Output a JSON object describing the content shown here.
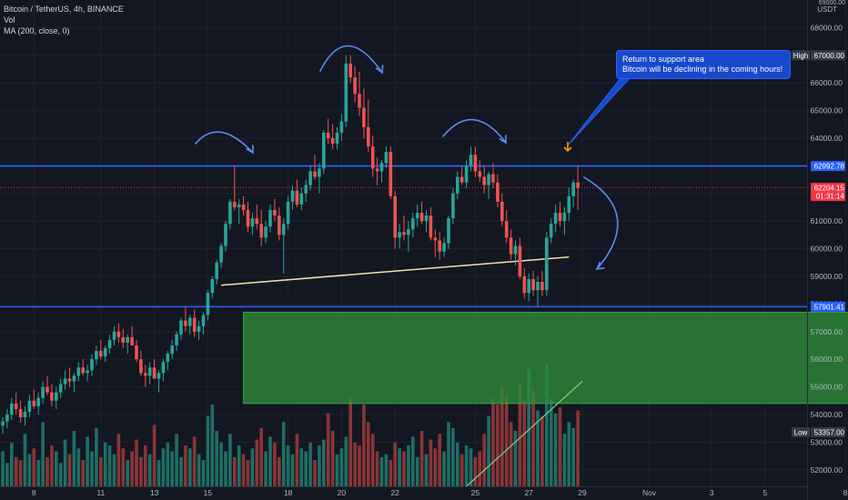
{
  "header": {
    "symbol_line": "Bitcoin / TetherUS, 4h, BINANCE",
    "vol_label": "Vol",
    "ma_label": "MA (200, close, 0)"
  },
  "callout": {
    "line1": "Return to support area",
    "line2": "Bitcoin will be declining in the coming hours!"
  },
  "colors": {
    "background": "#131722",
    "up": "#26a69a",
    "down": "#ef5350",
    "volume_up": "#1e6e66",
    "volume_down": "#8a3535",
    "support_line": "#2962ff",
    "neckline": "#f5deb3",
    "zone_fill": "#2e8b3a",
    "ma_line": "#7ed37e",
    "arrow": "#5b8def",
    "current_price": "#f23645",
    "target_arrow": "#ff9800"
  },
  "chart_data": {
    "type": "candlestick",
    "symbol": "Bitcoin / TetherUS",
    "interval": "4h",
    "exchange": "BINANCE",
    "y_axis": {
      "min": 51400,
      "max": 69000,
      "unit": "USDT",
      "ticks": [
        "52000.00",
        "53000.00",
        "54000.00",
        "55000.00",
        "56000.00",
        "57000.00",
        "58000.00",
        "59000.00",
        "60000.00",
        "61000.00",
        "62000.00",
        "63000.00",
        "64000.00",
        "65000.00",
        "66000.00",
        "67000.00",
        "68000.00"
      ]
    },
    "x_axis": {
      "ticks": [
        {
          "label": "8",
          "i": 7
        },
        {
          "label": "11",
          "i": 22
        },
        {
          "label": "13",
          "i": 34
        },
        {
          "label": "15",
          "i": 46
        },
        {
          "label": "18",
          "i": 64
        },
        {
          "label": "20",
          "i": 76
        },
        {
          "label": "22",
          "i": 88
        },
        {
          "label": "25",
          "i": 106
        },
        {
          "label": "27",
          "i": 118
        },
        {
          "label": "29",
          "i": 130
        },
        {
          "label": "Nov",
          "i": 145
        },
        {
          "label": "3",
          "i": 159
        },
        {
          "label": "5",
          "i": 171
        },
        {
          "label": "8",
          "i": 189
        }
      ]
    },
    "price_labels": [
      {
        "text": "67000.00",
        "value": 67000,
        "tag": "High"
      },
      {
        "text": "62992.78",
        "value": 62992.78
      },
      {
        "text": "62204.15",
        "value": 62204.15,
        "countdown": "01:31:14",
        "current": true
      },
      {
        "text": "57901.41",
        "value": 57901.41
      },
      {
        "text": "53357.00",
        "value": 53357,
        "tag": "Low"
      }
    ],
    "support_levels": [
      62992.78,
      57901.41
    ],
    "zone": {
      "from_i": 54,
      "to_i": 192,
      "top": 57700,
      "bottom": 54400
    },
    "neckline": {
      "x1": 49,
      "y1": 58680,
      "x2": 127,
      "y2": 59700
    },
    "ohlc": [
      [
        53600,
        53900,
        53300,
        53750
      ],
      [
        53750,
        54200,
        53500,
        54000
      ],
      [
        54000,
        54600,
        53800,
        54400
      ],
      [
        54400,
        54800,
        54000,
        54200
      ],
      [
        54200,
        54500,
        53700,
        53900
      ],
      [
        53900,
        54300,
        53600,
        54100
      ],
      [
        54100,
        54700,
        53900,
        54500
      ],
      [
        54500,
        54900,
        54200,
        54300
      ],
      [
        54300,
        54800,
        54000,
        54600
      ],
      [
        54600,
        55200,
        54400,
        55000
      ],
      [
        55000,
        55400,
        54700,
        54800
      ],
      [
        54800,
        55100,
        54300,
        54500
      ],
      [
        54500,
        55000,
        54200,
        54800
      ],
      [
        54800,
        55300,
        54600,
        55100
      ],
      [
        55100,
        55600,
        54900,
        55300
      ],
      [
        55300,
        55700,
        55000,
        55200
      ],
      [
        55200,
        55500,
        54800,
        55400
      ],
      [
        55400,
        55900,
        55200,
        55700
      ],
      [
        55700,
        56000,
        55400,
        55500
      ],
      [
        55500,
        55800,
        55200,
        55600
      ],
      [
        55600,
        56200,
        55400,
        56000
      ],
      [
        56000,
        56500,
        55800,
        56300
      ],
      [
        56300,
        56700,
        56000,
        56100
      ],
      [
        56100,
        56500,
        55900,
        56400
      ],
      [
        56400,
        56900,
        56200,
        56700
      ],
      [
        56700,
        57200,
        56500,
        57000
      ],
      [
        57000,
        57300,
        56600,
        56800
      ],
      [
        56800,
        57100,
        56400,
        56600
      ],
      [
        56600,
        56900,
        56200,
        56800
      ],
      [
        56800,
        57200,
        56500,
        56500
      ],
      [
        56500,
        56700,
        55900,
        56000
      ],
      [
        56000,
        56300,
        55400,
        55500
      ],
      [
        55500,
        55800,
        55000,
        55400
      ],
      [
        55400,
        55900,
        55100,
        55700
      ],
      [
        55700,
        56000,
        55300,
        55300
      ],
      [
        55300,
        55600,
        54800,
        55500
      ],
      [
        55500,
        56000,
        55200,
        55900
      ],
      [
        55900,
        56300,
        55600,
        56200
      ],
      [
        56200,
        56700,
        56000,
        56500
      ],
      [
        56500,
        57000,
        56300,
        56900
      ],
      [
        56900,
        57500,
        56700,
        57400
      ],
      [
        57400,
        57900,
        57000,
        57200
      ],
      [
        57200,
        57600,
        56900,
        57500
      ],
      [
        57500,
        57800,
        56800,
        57000
      ],
      [
        57000,
        57400,
        56700,
        57200
      ],
      [
        57200,
        57700,
        56900,
        57600
      ],
      [
        57600,
        58500,
        57400,
        58400
      ],
      [
        58400,
        59000,
        58200,
        58900
      ],
      [
        58900,
        59600,
        58700,
        59500
      ],
      [
        59500,
        60200,
        59300,
        60100
      ],
      [
        60100,
        61000,
        59900,
        60900
      ],
      [
        60900,
        61800,
        60700,
        61700
      ],
      [
        61700,
        63000,
        61400,
        61500
      ],
      [
        61500,
        61800,
        60900,
        61600
      ],
      [
        61600,
        61900,
        61200,
        61400
      ],
      [
        61400,
        61700,
        60600,
        60800
      ],
      [
        60800,
        61300,
        60500,
        61100
      ],
      [
        61100,
        61600,
        60700,
        60900
      ],
      [
        60900,
        61400,
        60100,
        60400
      ],
      [
        60400,
        61000,
        60200,
        60800
      ],
      [
        60800,
        61600,
        60600,
        61400
      ],
      [
        61400,
        61800,
        61000,
        61200
      ],
      [
        61200,
        61500,
        60300,
        60500
      ],
      [
        60500,
        61100,
        59100,
        60900
      ],
      [
        60900,
        61900,
        60700,
        61700
      ],
      [
        61700,
        62300,
        61400,
        62100
      ],
      [
        62100,
        62500,
        61500,
        61600
      ],
      [
        61600,
        62200,
        61400,
        62000
      ],
      [
        62000,
        62500,
        61700,
        62300
      ],
      [
        62300,
        63000,
        62100,
        62800
      ],
      [
        62800,
        63400,
        62500,
        62600
      ],
      [
        62600,
        63100,
        62000,
        62900
      ],
      [
        62900,
        64300,
        62700,
        64200
      ],
      [
        64200,
        64700,
        63800,
        64000
      ],
      [
        64000,
        64500,
        63600,
        63800
      ],
      [
        63800,
        64400,
        63600,
        64200
      ],
      [
        64200,
        64900,
        63900,
        64600
      ],
      [
        64600,
        67000,
        64400,
        66700
      ],
      [
        66700,
        67000,
        66000,
        66200
      ],
      [
        66200,
        66600,
        65300,
        65600
      ],
      [
        65600,
        66400,
        64800,
        65100
      ],
      [
        65100,
        65800,
        64000,
        64400
      ],
      [
        64400,
        65400,
        63500,
        63700
      ],
      [
        63700,
        64100,
        62600,
        62900
      ],
      [
        62900,
        63300,
        62300,
        62800
      ],
      [
        62800,
        63200,
        62400,
        63100
      ],
      [
        63100,
        63700,
        62900,
        63500
      ],
      [
        63500,
        63700,
        61800,
        61900
      ],
      [
        61900,
        62100,
        60000,
        60400
      ],
      [
        60400,
        60900,
        60000,
        60600
      ],
      [
        60600,
        61200,
        60300,
        60500
      ],
      [
        60500,
        61000,
        59900,
        60700
      ],
      [
        60700,
        61300,
        60400,
        61100
      ],
      [
        61100,
        61600,
        60800,
        61300
      ],
      [
        61300,
        61700,
        60900,
        61000
      ],
      [
        61000,
        61400,
        60600,
        61200
      ],
      [
        61200,
        61500,
        60300,
        60400
      ],
      [
        60400,
        60700,
        59700,
        60300
      ],
      [
        60300,
        60600,
        59600,
        59900
      ],
      [
        59900,
        60400,
        59700,
        60200
      ],
      [
        60200,
        61200,
        60000,
        61100
      ],
      [
        61100,
        62200,
        60900,
        62000
      ],
      [
        62000,
        62800,
        61800,
        62600
      ],
      [
        62600,
        63000,
        62300,
        62400
      ],
      [
        62400,
        63200,
        62200,
        63000
      ],
      [
        63000,
        63700,
        62800,
        63400
      ],
      [
        63400,
        63700,
        62600,
        62800
      ],
      [
        62800,
        63200,
        62400,
        62600
      ],
      [
        62600,
        63000,
        62000,
        62300
      ],
      [
        62300,
        62800,
        61800,
        62700
      ],
      [
        62700,
        63100,
        62200,
        62400
      ],
      [
        62400,
        62700,
        61500,
        61700
      ],
      [
        61700,
        62000,
        60800,
        61000
      ],
      [
        61000,
        61400,
        60200,
        60400
      ],
      [
        60400,
        60700,
        59600,
        59800
      ],
      [
        59800,
        60300,
        59400,
        60100
      ],
      [
        60100,
        60400,
        58900,
        59000
      ],
      [
        59000,
        59300,
        58200,
        58400
      ],
      [
        58400,
        59100,
        58100,
        58900
      ],
      [
        58900,
        59200,
        58300,
        58500
      ],
      [
        58500,
        59000,
        57900,
        58800
      ],
      [
        58800,
        59200,
        58300,
        58500
      ],
      [
        58500,
        60600,
        58300,
        60400
      ],
      [
        60400,
        61100,
        60200,
        60900
      ],
      [
        60900,
        61600,
        60600,
        61300
      ],
      [
        61300,
        61700,
        60800,
        61000
      ],
      [
        61000,
        61500,
        60500,
        61300
      ],
      [
        61300,
        62200,
        61000,
        61900
      ],
      [
        61900,
        62500,
        61500,
        62400
      ],
      [
        62400,
        63000,
        61400,
        62204
      ]
    ],
    "volume": [
      12,
      8,
      15,
      10,
      9,
      18,
      11,
      13,
      9,
      22,
      10,
      14,
      12,
      8,
      16,
      11,
      19,
      13,
      9,
      17,
      12,
      20,
      10,
      15,
      14,
      11,
      18,
      13,
      9,
      12,
      16,
      10,
      14,
      11,
      21,
      9,
      13,
      15,
      12,
      18,
      10,
      14,
      13,
      17,
      11,
      9,
      24,
      28,
      19,
      15,
      12,
      18,
      10,
      14,
      11,
      9,
      13,
      16,
      20,
      12,
      17,
      15,
      10,
      22,
      14,
      11,
      18,
      13,
      12,
      15,
      9,
      14,
      16,
      25,
      19,
      11,
      13,
      17,
      30,
      15,
      14,
      28,
      22,
      18,
      12,
      10,
      11,
      9,
      15,
      13,
      12,
      14,
      17,
      10,
      19,
      11,
      16,
      13,
      18,
      12,
      22,
      20,
      15,
      11,
      14,
      13,
      10,
      12,
      18,
      24,
      30,
      28,
      34,
      31,
      22,
      19,
      35,
      29,
      40,
      33,
      26,
      24,
      42,
      30,
      25,
      27,
      18,
      22,
      20,
      26
    ],
    "ma": {
      "from_i": 104,
      "to_i": 130,
      "from_v": 51400,
      "to_v": 55200
    }
  }
}
